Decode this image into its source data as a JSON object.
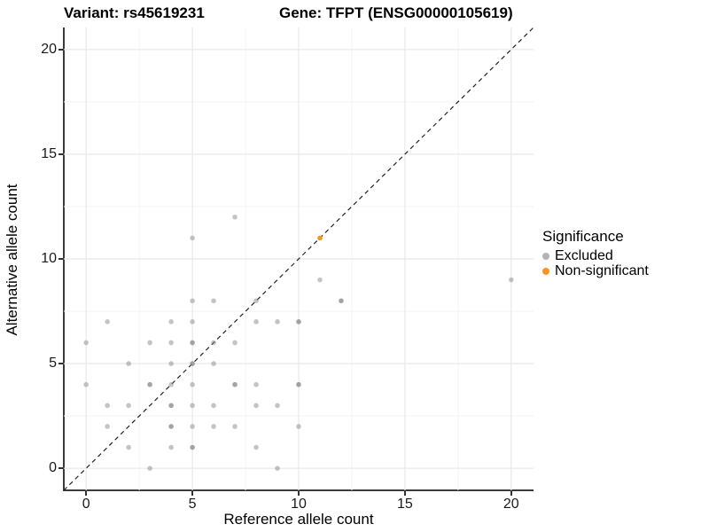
{
  "titles": {
    "left": "Variant: rs45619231",
    "right": "Gene: TFPT (ENSG00000105619)"
  },
  "legend": {
    "title": "Significance",
    "items": [
      {
        "label": "Excluded",
        "color": "#b4b4b4"
      },
      {
        "label": "Non-significant",
        "color": "#F6961E"
      }
    ]
  },
  "chart_data": {
    "type": "scatter",
    "title_left": "Variant: rs45619231",
    "title_right": "Gene: TFPT (ENSG00000105619)",
    "xlabel": "Reference allele count",
    "ylabel": "Alternative allele count",
    "x_ticks": [
      0,
      5,
      10,
      15,
      20
    ],
    "y_ticks": [
      0,
      5,
      10,
      15,
      20
    ],
    "x_minor": [
      2.5,
      7.5,
      12.5,
      17.5
    ],
    "y_minor": [
      2.5,
      7.5,
      12.5,
      17.5
    ],
    "xlim": [
      -1.05,
      21.05
    ],
    "ylim": [
      -1.05,
      21.05
    ],
    "grid": true,
    "legend_position": "right",
    "reference_line": {
      "type": "identity y=x",
      "style": "dashed",
      "color": "#222222"
    },
    "point_note": "points are [x, y, overlap_count]; overlap_count 2 renders darker (alpha stacking)",
    "series": [
      {
        "name": "Excluded",
        "color": "#8a8a8a",
        "points": [
          [
            0,
            4,
            1
          ],
          [
            0,
            6,
            1
          ],
          [
            1,
            2,
            1
          ],
          [
            1,
            3,
            1
          ],
          [
            1,
            7,
            1
          ],
          [
            2,
            1,
            1
          ],
          [
            2,
            3,
            1
          ],
          [
            2,
            5,
            1
          ],
          [
            3,
            0,
            1
          ],
          [
            3,
            4,
            2
          ],
          [
            3,
            6,
            1
          ],
          [
            4,
            1,
            1
          ],
          [
            4,
            2,
            2
          ],
          [
            4,
            3,
            2
          ],
          [
            4,
            4,
            1
          ],
          [
            4,
            5,
            1
          ],
          [
            4,
            6,
            1
          ],
          [
            4,
            7,
            1
          ],
          [
            5,
            1,
            2
          ],
          [
            5,
            2,
            1
          ],
          [
            5,
            3,
            1
          ],
          [
            5,
            4,
            1
          ],
          [
            5,
            5,
            2
          ],
          [
            5,
            6,
            2
          ],
          [
            5,
            7,
            1
          ],
          [
            5,
            8,
            1
          ],
          [
            5,
            11,
            1
          ],
          [
            6,
            2,
            1
          ],
          [
            6,
            3,
            1
          ],
          [
            6,
            5,
            1
          ],
          [
            6,
            6,
            1
          ],
          [
            6,
            8,
            1
          ],
          [
            7,
            2,
            1
          ],
          [
            7,
            4,
            2
          ],
          [
            7,
            6,
            1
          ],
          [
            7,
            12,
            1
          ],
          [
            8,
            1,
            1
          ],
          [
            8,
            3,
            1
          ],
          [
            8,
            4,
            1
          ],
          [
            8,
            7,
            1
          ],
          [
            8,
            8,
            1
          ],
          [
            9,
            0,
            1
          ],
          [
            9,
            3,
            1
          ],
          [
            9,
            7,
            1
          ],
          [
            10,
            2,
            1
          ],
          [
            10,
            4,
            2
          ],
          [
            10,
            7,
            2
          ],
          [
            11,
            9,
            1
          ],
          [
            12,
            8,
            2
          ],
          [
            20,
            9,
            1
          ]
        ]
      },
      {
        "name": "Non-significant",
        "color": "#F6961E",
        "points": [
          [
            11,
            11,
            1
          ]
        ]
      }
    ]
  }
}
